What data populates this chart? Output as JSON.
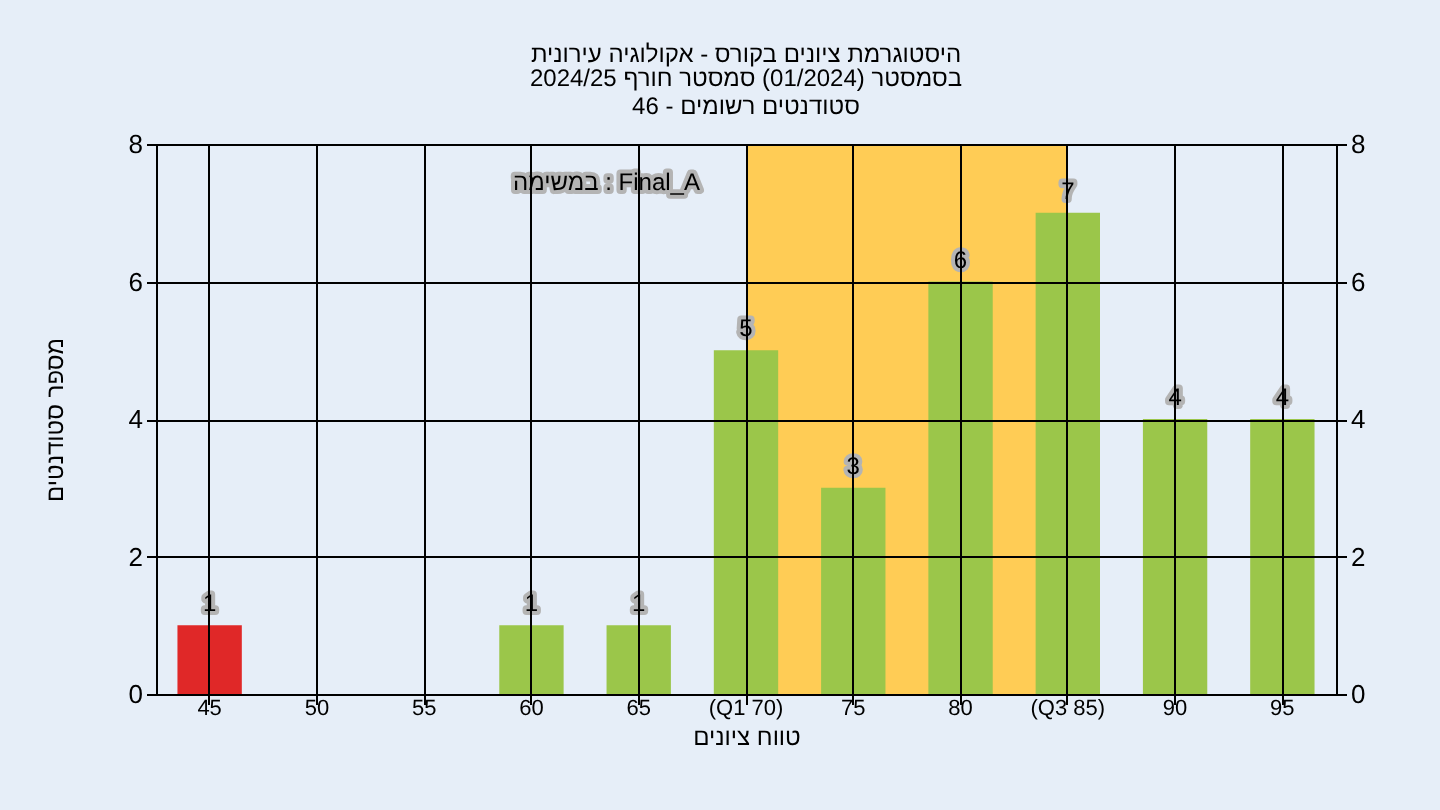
{
  "chart_data": {
    "type": "bar",
    "title": "היסטוגרמת ציונים בקורס - אקולוגיה עירונית",
    "subtitle": "בסמסטר  (01/2024)  סמסטר חורף 2024/25\nסטודנטים רשומים - 46",
    "xlabel": "טווח ציונים",
    "ylabel": "מספר סטודנטים",
    "annotations": [
      "במשימה : Final_A"
    ],
    "categories": [
      "45",
      "50",
      "55",
      "60",
      "65",
      "(Q1 70)",
      "75",
      "80",
      "(Q3 85)",
      "90",
      "95"
    ],
    "values": [
      1,
      0,
      0,
      1,
      1,
      5,
      3,
      6,
      7,
      4,
      4
    ],
    "value_labels": [
      "1",
      null,
      null,
      "1",
      "1",
      "5",
      "3",
      "6",
      "7",
      "4",
      "4"
    ],
    "colors": [
      "#e02828",
      "#9bc64a",
      "#9bc64a",
      "#9bc64a",
      "#9bc64a",
      "#9bc64a",
      "#9bc64a",
      "#9bc64a",
      "#9bc64a",
      "#9bc64a",
      "#9bc64a"
    ],
    "bands": [
      {
        "axis": "x",
        "from": "(Q1 70)",
        "to": "(Q3 85)",
        "color": "#ffcc55"
      }
    ],
    "ylim": [
      0,
      8
    ],
    "yticks": [
      0,
      2,
      4,
      6,
      8
    ],
    "y2lim": [
      0,
      8
    ],
    "y2ticks": [
      0,
      2,
      4,
      6,
      8
    ],
    "grid": true
  }
}
